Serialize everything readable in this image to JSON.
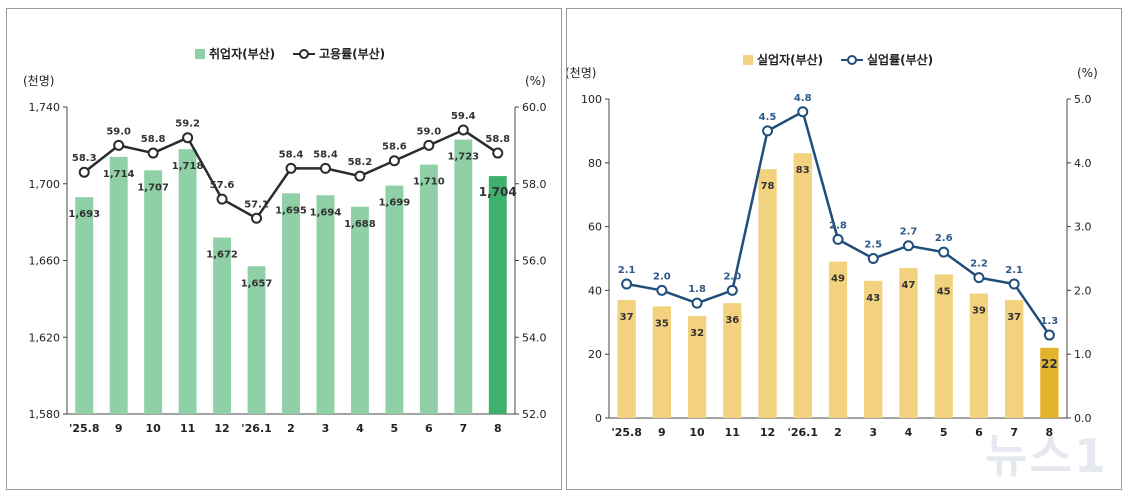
{
  "chart_data": [
    {
      "type": "bar+line",
      "categories": [
        "'25.8",
        "9",
        "10",
        "11",
        "12",
        "'26.1",
        "2",
        "3",
        "4",
        "5",
        "6",
        "7",
        "8"
      ],
      "left_unit": "(천명)",
      "right_unit": "(%)",
      "y_left_ticks": [
        "1,580",
        "1,620",
        "1,660",
        "1,700",
        "1,740"
      ],
      "y_right_ticks": [
        "52.0",
        "54.0",
        "56.0",
        "58.0",
        "60.0"
      ],
      "ylim_left": [
        1580,
        1740
      ],
      "ylim_right": [
        52.0,
        60.0
      ],
      "bar_series": {
        "name": "취업자(부산)",
        "values": [
          1693,
          1714,
          1707,
          1718,
          1672,
          1657,
          1695,
          1694,
          1688,
          1699,
          1710,
          1723,
          1704
        ],
        "labels": [
          "1,693",
          "1,714",
          "1,707",
          "1,718",
          "1,672",
          "1,657",
          "1,695",
          "1,694",
          "1,688",
          "1,699",
          "1,710",
          "1,723",
          "1,704"
        ],
        "color": "#8fd0a6",
        "highlight_color": "#3fb06e"
      },
      "line_series": {
        "name": "고용률(부산)",
        "values": [
          58.3,
          59.0,
          58.8,
          59.2,
          57.6,
          57.1,
          58.4,
          58.4,
          58.2,
          58.6,
          59.0,
          59.4,
          58.8
        ],
        "labels": [
          "58.3",
          "59.0",
          "58.8",
          "59.2",
          "57.6",
          "57.1",
          "58.4",
          "58.4",
          "58.2",
          "58.6",
          "59.0",
          "59.4",
          "58.8"
        ],
        "color": "#2b2b2b"
      },
      "legend_placement": "top-center"
    },
    {
      "type": "bar+line",
      "categories": [
        "'25.8",
        "9",
        "10",
        "11",
        "12",
        "'26.1",
        "2",
        "3",
        "4",
        "5",
        "6",
        "7",
        "8"
      ],
      "left_unit": "(천명)",
      "right_unit": "(%)",
      "y_left_ticks": [
        "0",
        "20",
        "40",
        "60",
        "80",
        "100"
      ],
      "y_right_ticks": [
        "0.0",
        "1.0",
        "2.0",
        "3.0",
        "4.0",
        "5.0"
      ],
      "ylim_left": [
        0,
        100
      ],
      "ylim_right": [
        0.0,
        5.0
      ],
      "bar_series": {
        "name": "실업자(부산)",
        "values": [
          37,
          35,
          32,
          36,
          78,
          83,
          49,
          43,
          47,
          45,
          39,
          37,
          22
        ],
        "labels": [
          "37",
          "35",
          "32",
          "36",
          "78",
          "83",
          "49",
          "43",
          "47",
          "45",
          "39",
          "37",
          "22"
        ],
        "color": "#f2d27e",
        "highlight_color": "#e2b42e"
      },
      "line_series": {
        "name": "실업률(부산)",
        "values": [
          2.1,
          2.0,
          1.8,
          2.0,
          4.5,
          4.8,
          2.8,
          2.5,
          2.7,
          2.6,
          2.2,
          2.1,
          1.3
        ],
        "labels": [
          "2.1",
          "2.0",
          "1.8",
          "2.0",
          "4.5",
          "4.8",
          "2.8",
          "2.5",
          "2.7",
          "2.6",
          "2.2",
          "2.1",
          "1.3"
        ],
        "color": "#1f4e7a"
      },
      "legend_placement": "top-center"
    }
  ],
  "watermark": "뉴스1"
}
